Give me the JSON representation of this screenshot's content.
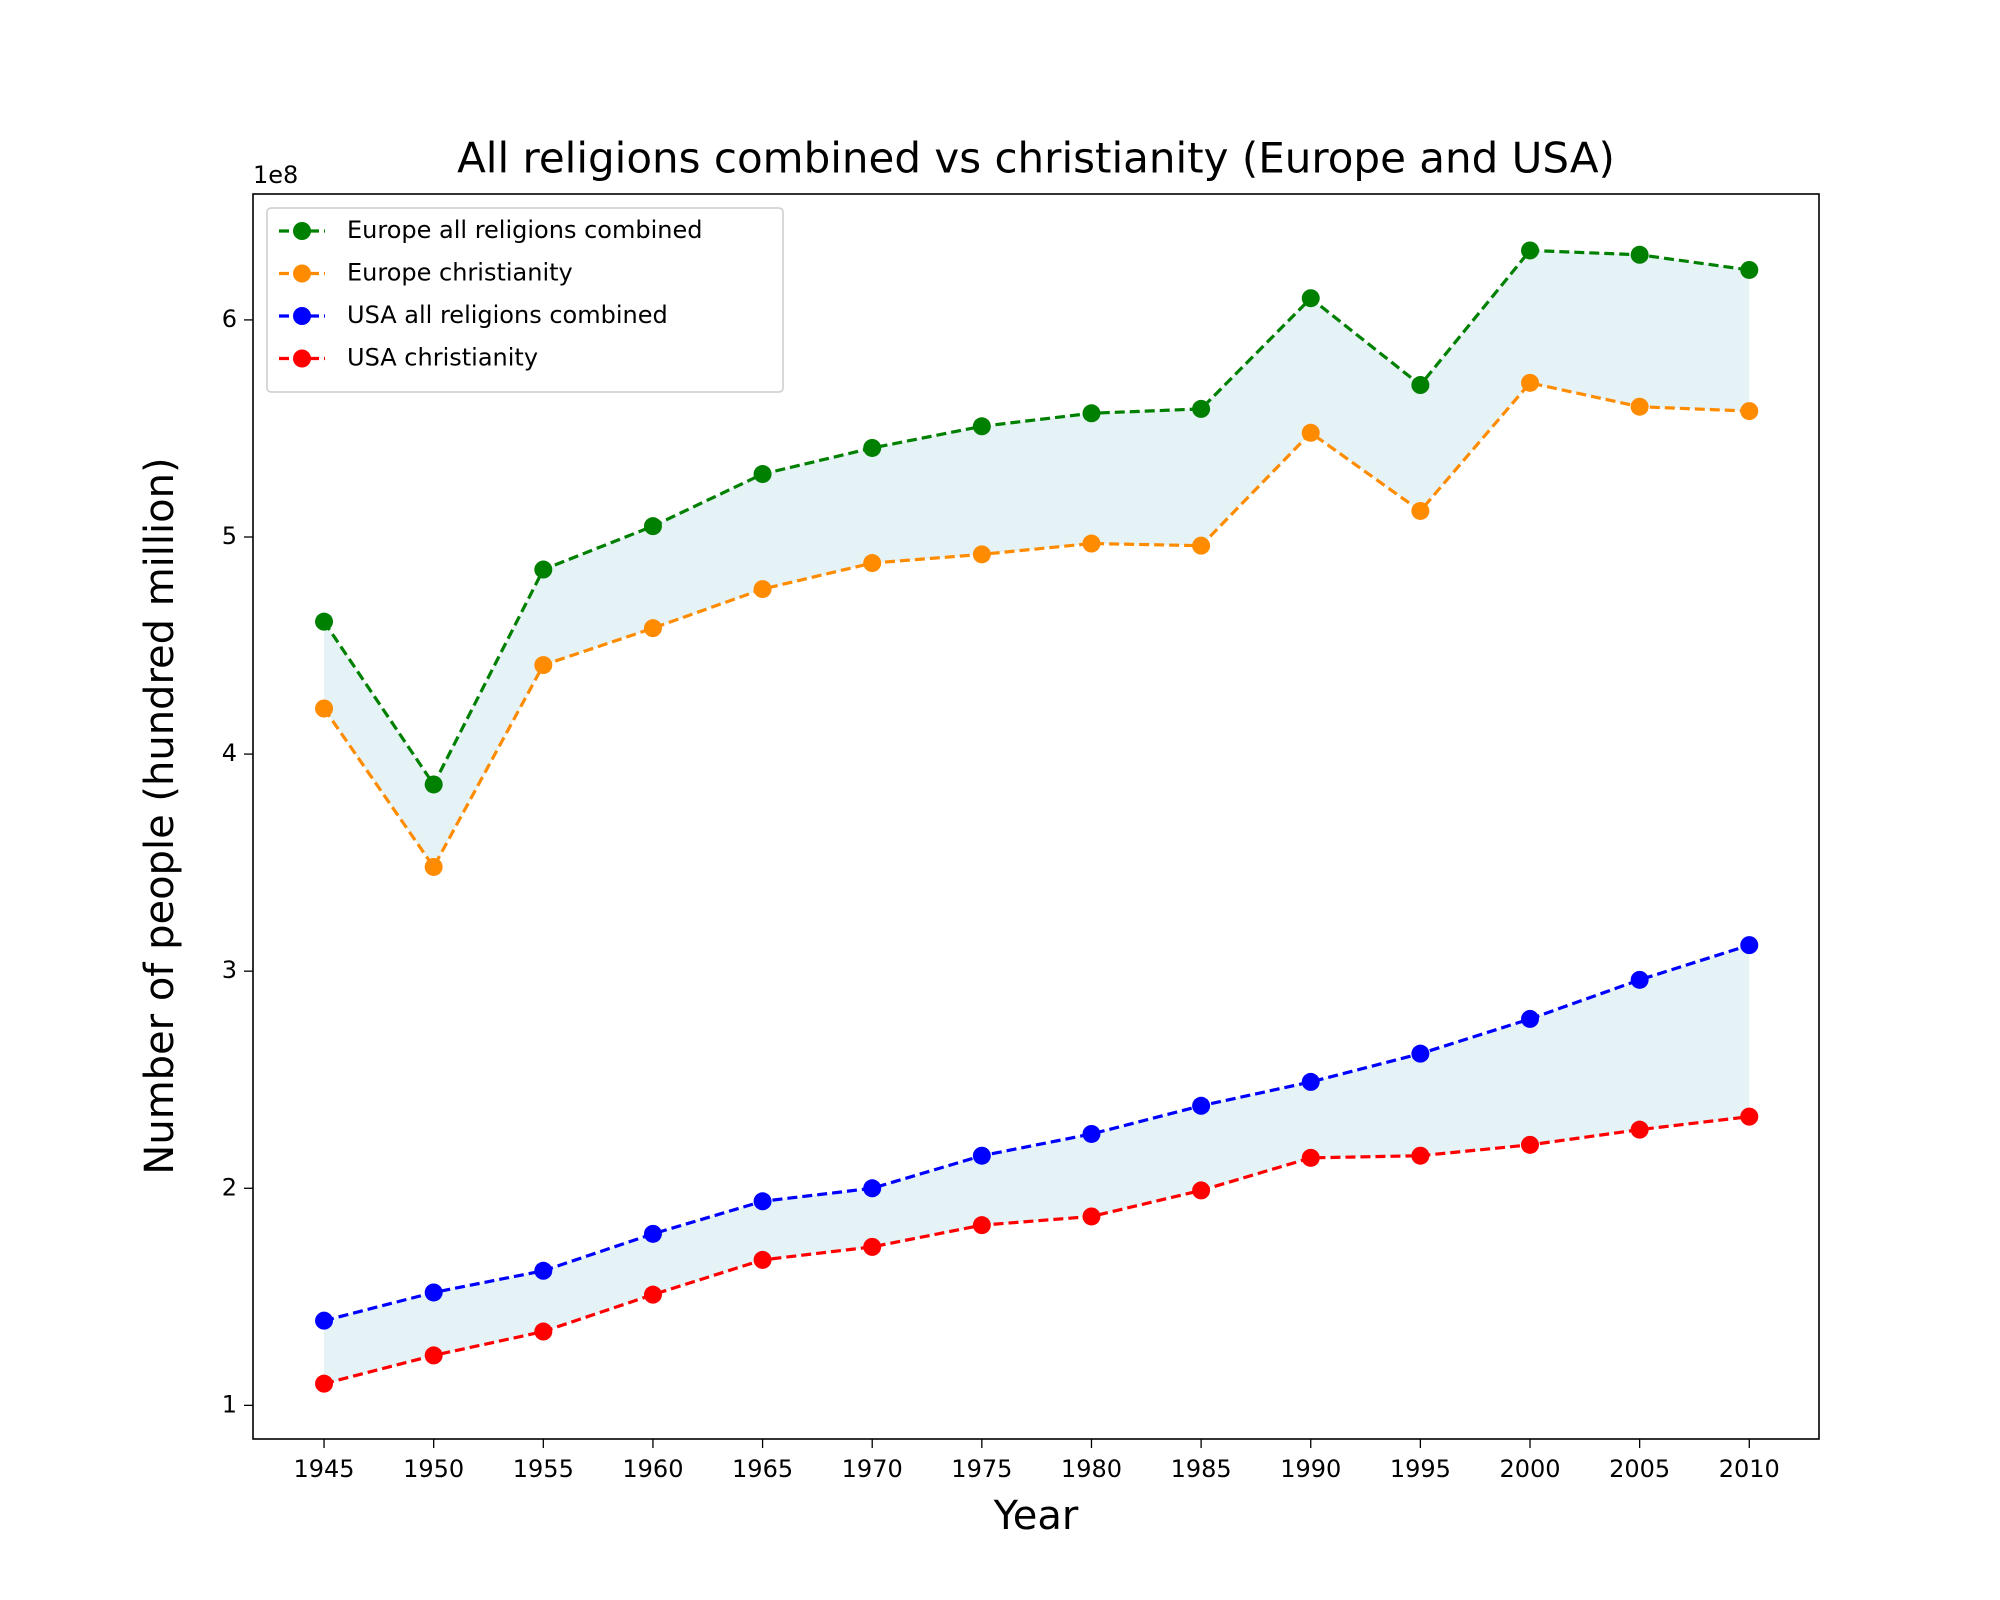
{
  "chart_data": {
    "type": "line",
    "title": "All religions combined vs christianity (Europe and USA)",
    "x_label": "Year",
    "y_label": "Number of people (hundred million)",
    "y_offset_label": "1e8",
    "x": [
      1945,
      1950,
      1955,
      1960,
      1965,
      1970,
      1975,
      1980,
      1985,
      1990,
      1995,
      2000,
      2005,
      2010
    ],
    "series": [
      {
        "name": "Europe all religions combined",
        "color": "#008000",
        "values": [
          4.61,
          3.86,
          4.85,
          5.05,
          5.29,
          5.41,
          5.51,
          5.57,
          5.59,
          6.1,
          5.7,
          6.32,
          6.3,
          6.23
        ]
      },
      {
        "name": "Europe christianity",
        "color": "#ff8c00",
        "values": [
          4.21,
          3.48,
          4.41,
          4.58,
          4.76,
          4.88,
          4.92,
          4.97,
          4.96,
          5.48,
          5.12,
          5.71,
          5.6,
          5.58
        ]
      },
      {
        "name": "USA all religions combined",
        "color": "#0000ff",
        "values": [
          1.39,
          1.52,
          1.62,
          1.79,
          1.94,
          2.0,
          2.15,
          2.25,
          2.38,
          2.49,
          2.62,
          2.78,
          2.96,
          3.12
        ]
      },
      {
        "name": "USA christianity",
        "color": "#ff0000",
        "values": [
          1.1,
          1.23,
          1.34,
          1.51,
          1.67,
          1.73,
          1.83,
          1.87,
          1.99,
          2.14,
          2.15,
          2.2,
          2.27,
          2.33
        ]
      }
    ],
    "fill_between": [
      [
        0,
        1
      ],
      [
        2,
        3
      ]
    ],
    "fill_color": "#e5f2f6",
    "xlim": [
      1941.76,
      2013.18
    ],
    "ylim": [
      0.845,
      6.58
    ],
    "xticks": [
      1945,
      1950,
      1955,
      1960,
      1965,
      1970,
      1975,
      1980,
      1985,
      1990,
      1995,
      2000,
      2005,
      2010
    ],
    "yticks": [
      1,
      2,
      3,
      4,
      5,
      6
    ],
    "grid": false,
    "line_style": "dashed",
    "legend_position": "upper-left"
  }
}
